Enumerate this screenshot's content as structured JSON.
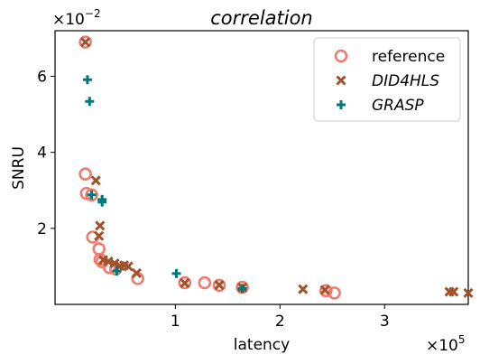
{
  "chart_data": {
    "type": "scatter",
    "title": "correlation",
    "xlabel": "latency",
    "ylabel": "SNRU",
    "x_multiplier": "×10",
    "x_multiplier_exp": "5",
    "y_multiplier": "×10",
    "y_multiplier_exp": "−2",
    "xlim": [
      -15000,
      380000
    ],
    "ylim": [
      0.0,
      0.072
    ],
    "x_ticks": [
      100000,
      200000,
      300000
    ],
    "x_tick_labels": [
      "1",
      "2",
      "3"
    ],
    "y_ticks": [
      0.02,
      0.04,
      0.06
    ],
    "y_tick_labels": [
      "2",
      "4",
      "6"
    ],
    "grid": false,
    "legend_position": "top-right",
    "series": [
      {
        "name": "reference",
        "marker": "circle-open",
        "color": "#f07a6c",
        "points": [
          [
            14000,
            0.069
          ],
          [
            14000,
            0.0343
          ],
          [
            15000,
            0.0292
          ],
          [
            20000,
            0.0288
          ],
          [
            21000,
            0.0177
          ],
          [
            27000,
            0.0146
          ],
          [
            28000,
            0.0118
          ],
          [
            30000,
            0.0112
          ],
          [
            37000,
            0.0097
          ],
          [
            43000,
            0.0093
          ],
          [
            64000,
            0.0068
          ],
          [
            109000,
            0.0057
          ],
          [
            128000,
            0.0057
          ],
          [
            142000,
            0.005
          ],
          [
            164000,
            0.0045
          ],
          [
            244000,
            0.0036
          ],
          [
            252000,
            0.003
          ]
        ]
      },
      {
        "name": "DID4HLS",
        "marker": "x",
        "color": "#a0522d",
        "points": [
          [
            14000,
            0.069
          ],
          [
            24000,
            0.0326
          ],
          [
            28000,
            0.0207
          ],
          [
            27000,
            0.018
          ],
          [
            31000,
            0.0117
          ],
          [
            36000,
            0.0113
          ],
          [
            42000,
            0.0108
          ],
          [
            47000,
            0.0101
          ],
          [
            51000,
            0.0103
          ],
          [
            55000,
            0.01
          ],
          [
            63000,
            0.0082
          ],
          [
            109000,
            0.0056
          ],
          [
            142000,
            0.0051
          ],
          [
            164000,
            0.0044
          ],
          [
            222000,
            0.004
          ],
          [
            243000,
            0.0038
          ],
          [
            362000,
            0.0033
          ],
          [
            366000,
            0.0033
          ],
          [
            380000,
            0.003
          ]
        ]
      },
      {
        "name": "GRASP",
        "marker": "plus",
        "color": "#00797c",
        "points": [
          [
            16000,
            0.0591
          ],
          [
            18000,
            0.0534
          ],
          [
            20000,
            0.0288
          ],
          [
            30000,
            0.0276
          ],
          [
            30000,
            0.0269
          ],
          [
            44000,
            0.0088
          ],
          [
            101000,
            0.0081
          ],
          [
            164000,
            0.0042
          ]
        ]
      }
    ]
  }
}
